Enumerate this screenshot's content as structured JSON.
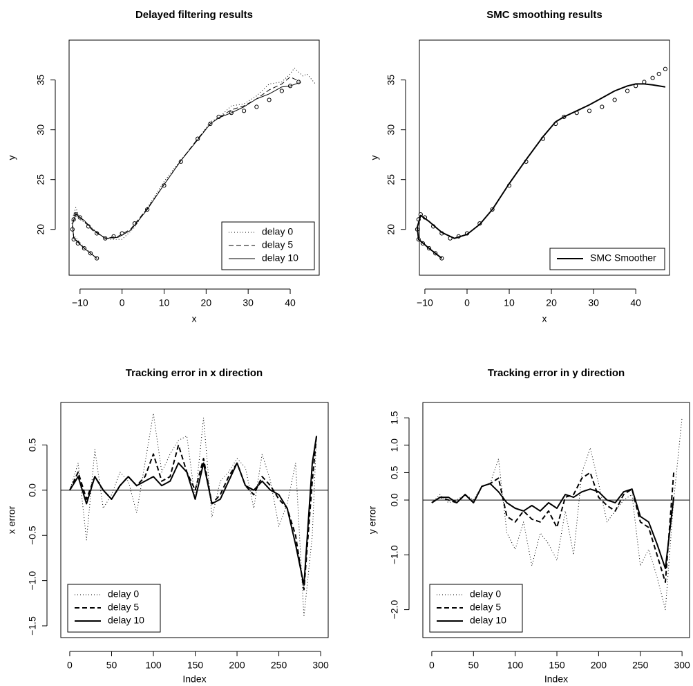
{
  "chart_data": [
    {
      "type": "line",
      "title": "Delayed filtering results",
      "xlabel": "x",
      "ylabel": "y",
      "xlim": [
        -12.6,
        46.9
      ],
      "ylim": [
        15.4,
        39.0
      ],
      "xticks": [
        {
          "value": -10,
          "label": "−10"
        },
        0,
        10,
        20,
        30,
        40
      ],
      "yticks": [
        20,
        25,
        30,
        35
      ],
      "legend": "bottomright",
      "series": [
        {
          "color": "#000000",
          "marker": "circle",
          "x": [
            -6,
            -7.5,
            -9,
            -10.5,
            -11.5,
            -11.8,
            -11.5,
            -11,
            -10,
            -8,
            -6,
            -4,
            -2,
            0,
            3,
            6,
            10,
            14,
            18,
            21,
            23,
            26,
            29,
            32,
            35,
            38,
            40,
            42
          ],
          "values": [
            17.1,
            17.6,
            18.1,
            18.6,
            19.0,
            20.0,
            21.0,
            21.5,
            21.2,
            20.3,
            19.6,
            19.1,
            19.3,
            19.6,
            20.6,
            22.0,
            24.4,
            26.8,
            29.1,
            30.6,
            31.3,
            31.7,
            31.9,
            32.3,
            33.0,
            33.9,
            34.4,
            34.8
          ]
        },
        {
          "name": "delay 0",
          "color": "#000000",
          "dash": "dotted",
          "width": 1,
          "x": [
            -6,
            -9,
            -11.5,
            -12,
            -11,
            -10,
            -8,
            -5,
            -3,
            0,
            3,
            6,
            10,
            14,
            18,
            21,
            23,
            26,
            29,
            32,
            35,
            38,
            40,
            41,
            43,
            44,
            46
          ],
          "values": [
            17.1,
            18.2,
            19.4,
            20.8,
            22.2,
            21.0,
            20.4,
            19.4,
            19.0,
            19.0,
            20.2,
            22.2,
            24.8,
            27.0,
            29.0,
            30.8,
            31.2,
            32.4,
            32.6,
            33.4,
            34.6,
            34.8,
            35.6,
            36.2,
            35.4,
            35.6,
            34.6
          ]
        },
        {
          "name": "delay 5",
          "color": "#000000",
          "dash": "dashed",
          "width": 1,
          "x": [
            -6,
            -9,
            -11.5,
            -11.8,
            -11,
            -9,
            -7,
            -4,
            -1,
            2,
            6,
            10,
            14,
            18,
            21,
            23,
            26,
            29,
            32,
            35,
            38,
            40,
            41.5,
            42.5
          ],
          "values": [
            17.1,
            18.1,
            19.2,
            20.6,
            21.6,
            20.8,
            19.9,
            19.1,
            19.3,
            20.0,
            22.1,
            24.5,
            26.9,
            29.1,
            30.6,
            31.2,
            32.0,
            32.4,
            33.1,
            34.0,
            34.6,
            35.3,
            35.0,
            34.7
          ]
        },
        {
          "name": "delay 10",
          "color": "#000000",
          "dash": "solid",
          "width": 1,
          "x": [
            -6,
            -9,
            -11.5,
            -11.8,
            -11,
            -9,
            -7,
            -4,
            -1,
            2,
            6,
            10,
            14,
            18,
            21,
            23,
            26,
            29,
            32,
            35,
            38,
            40,
            42
          ],
          "values": [
            17.1,
            18.1,
            19.1,
            20.5,
            21.5,
            20.9,
            20.0,
            19.1,
            19.2,
            19.9,
            22.0,
            24.5,
            26.9,
            29.0,
            30.6,
            31.2,
            31.7,
            32.3,
            33.1,
            33.6,
            34.3,
            34.4,
            34.7
          ]
        }
      ]
    },
    {
      "type": "line",
      "title": "SMC smoothing results",
      "xlabel": "x",
      "ylabel": "y",
      "xlim": [
        -11.3,
        48.0
      ],
      "ylim": [
        15.4,
        39.0
      ],
      "xticks": [
        {
          "value": -10,
          "label": "−10"
        },
        0,
        10,
        20,
        30,
        40
      ],
      "yticks": [
        20,
        25,
        30,
        35
      ],
      "legend": "bottomright",
      "series": [
        {
          "color": "#000000",
          "marker": "circle",
          "x": [
            -6,
            -7.5,
            -9,
            -10.5,
            -11.5,
            -11.8,
            -11.5,
            -11,
            -10,
            -8,
            -6,
            -4,
            -2,
            0,
            3,
            6,
            10,
            14,
            18,
            21,
            23,
            26,
            29,
            32,
            35,
            38,
            40,
            42,
            44,
            45.5,
            47
          ],
          "values": [
            17.1,
            17.6,
            18.1,
            18.6,
            19.0,
            20.0,
            21.0,
            21.5,
            21.2,
            20.3,
            19.6,
            19.1,
            19.3,
            19.6,
            20.6,
            22.0,
            24.4,
            26.8,
            29.1,
            30.6,
            31.3,
            31.7,
            31.9,
            32.3,
            33.0,
            33.9,
            34.4,
            34.8,
            35.2,
            35.6,
            36.1
          ]
        },
        {
          "name": "SMC Smoother",
          "color": "#000000",
          "dash": "solid",
          "width": 2,
          "x": [
            -6,
            -9,
            -11.5,
            -11.8,
            -11,
            -9,
            -6,
            -3,
            0,
            3,
            6,
            10,
            14,
            18,
            21,
            23,
            26,
            29,
            32,
            35,
            38,
            40,
            42,
            44,
            47
          ],
          "values": [
            17.1,
            18.1,
            19.0,
            20.2,
            21.4,
            20.8,
            19.7,
            19.1,
            19.5,
            20.5,
            22.0,
            24.6,
            27.0,
            29.3,
            30.8,
            31.3,
            31.9,
            32.5,
            33.2,
            33.9,
            34.4,
            34.6,
            34.6,
            34.5,
            34.3
          ]
        }
      ]
    },
    {
      "type": "line",
      "title": "Tracking error in x direction",
      "xlabel": "Index",
      "ylabel": "x error",
      "xlim": [
        -10.7,
        309
      ],
      "ylim": [
        -1.63,
        0.97
      ],
      "xticks": [
        0,
        50,
        100,
        150,
        200,
        250,
        300
      ],
      "yticks": [
        {
          "value": -1.5,
          "label": "−1.5"
        },
        {
          "value": -1,
          "label": "−1.0"
        },
        {
          "value": -0.5,
          "label": "−0.5"
        },
        {
          "value": 0,
          "label": "0.0"
        },
        0.5
      ],
      "hline": 0,
      "legend": "bottomleft",
      "x": [
        0,
        10,
        20,
        30,
        40,
        50,
        60,
        70,
        80,
        90,
        100,
        110,
        120,
        130,
        140,
        150,
        160,
        170,
        180,
        190,
        200,
        210,
        220,
        230,
        240,
        250,
        260,
        270,
        280,
        290,
        295
      ],
      "series": [
        {
          "name": "delay 0",
          "color": "#000000",
          "dash": "dotted",
          "width": 1,
          "values": [
            0.0,
            0.3,
            -0.55,
            0.45,
            -0.2,
            -0.05,
            0.2,
            0.1,
            -0.25,
            0.3,
            0.85,
            0.2,
            0.4,
            0.55,
            0.6,
            -0.1,
            0.8,
            -0.3,
            0.1,
            0.2,
            0.35,
            0.25,
            -0.2,
            0.4,
            0.1,
            -0.4,
            -0.15,
            0.3,
            -1.4,
            -0.5,
            0.6
          ]
        },
        {
          "name": "delay 5",
          "color": "#000000",
          "dash": "dashed",
          "width": 2,
          "values": [
            0.0,
            0.2,
            -0.1,
            0.15,
            0.0,
            -0.1,
            0.05,
            0.15,
            0.05,
            0.15,
            0.4,
            0.1,
            0.15,
            0.5,
            0.2,
            0.0,
            0.35,
            -0.15,
            -0.05,
            0.15,
            0.3,
            0.05,
            -0.05,
            0.15,
            0.05,
            -0.1,
            -0.2,
            -0.5,
            -1.1,
            0.1,
            0.6
          ]
        },
        {
          "name": "delay 10",
          "color": "#000000",
          "dash": "solid",
          "width": 2,
          "values": [
            0.0,
            0.15,
            -0.15,
            0.15,
            0.0,
            -0.1,
            0.05,
            0.15,
            0.05,
            0.1,
            0.15,
            0.05,
            0.1,
            0.3,
            0.2,
            -0.1,
            0.3,
            -0.15,
            -0.1,
            0.1,
            0.3,
            0.05,
            0.0,
            0.1,
            0.0,
            -0.05,
            -0.2,
            -0.6,
            -1.05,
            0.3,
            0.6
          ]
        }
      ]
    },
    {
      "type": "line",
      "title": "Tracking error in y direction",
      "xlabel": "Index",
      "ylabel": "y error",
      "xlim": [
        -10.7,
        309
      ],
      "ylim": [
        -2.51,
        1.78
      ],
      "xticks": [
        0,
        50,
        100,
        150,
        200,
        250,
        300
      ],
      "yticks": [
        {
          "value": -2,
          "label": "−2.0"
        },
        {
          "value": -1,
          "label": "−1.0"
        },
        {
          "value": 0,
          "label": "0.0"
        },
        0.5,
        {
          "value": 1,
          "label": "1.0"
        },
        1.5
      ],
      "hline": 0,
      "legend": "bottomleft",
      "x": [
        0,
        10,
        20,
        30,
        40,
        50,
        60,
        70,
        80,
        90,
        100,
        110,
        120,
        130,
        140,
        150,
        160,
        170,
        180,
        190,
        200,
        210,
        220,
        230,
        240,
        250,
        260,
        270,
        280,
        290,
        300
      ],
      "series": [
        {
          "name": "delay 0",
          "color": "#000000",
          "dash": "dotted",
          "width": 1,
          "values": [
            -0.05,
            0.1,
            -0.05,
            0.0,
            0.1,
            0.0,
            0.25,
            0.3,
            0.75,
            -0.6,
            -0.9,
            -0.4,
            -1.2,
            -0.6,
            -0.8,
            -1.1,
            -0.2,
            -1.0,
            0.5,
            0.95,
            0.3,
            -0.4,
            -0.2,
            0.0,
            0.1,
            -1.2,
            -0.9,
            -1.4,
            -2.0,
            0.0,
            1.5
          ]
        },
        {
          "name": "delay 5",
          "color": "#000000",
          "dash": "dashed",
          "width": 2,
          "values": [
            -0.05,
            0.05,
            0.0,
            -0.05,
            0.1,
            -0.05,
            0.25,
            0.3,
            0.4,
            -0.3,
            -0.4,
            -0.2,
            -0.35,
            -0.4,
            -0.2,
            -0.5,
            0.05,
            0.1,
            0.4,
            0.5,
            0.05,
            -0.1,
            -0.2,
            0.1,
            0.2,
            -0.4,
            -0.5,
            -1.0,
            -1.5,
            0.5,
            null
          ]
        },
        {
          "name": "delay 10",
          "color": "#000000",
          "dash": "solid",
          "width": 2,
          "values": [
            -0.05,
            0.05,
            0.05,
            -0.05,
            0.1,
            -0.05,
            0.25,
            0.3,
            0.15,
            -0.05,
            -0.15,
            -0.2,
            -0.1,
            -0.2,
            -0.05,
            -0.15,
            0.1,
            0.05,
            0.15,
            0.2,
            0.15,
            0.0,
            -0.05,
            0.15,
            0.2,
            -0.3,
            -0.4,
            -0.8,
            -1.25,
            0.05,
            null
          ]
        }
      ]
    }
  ]
}
